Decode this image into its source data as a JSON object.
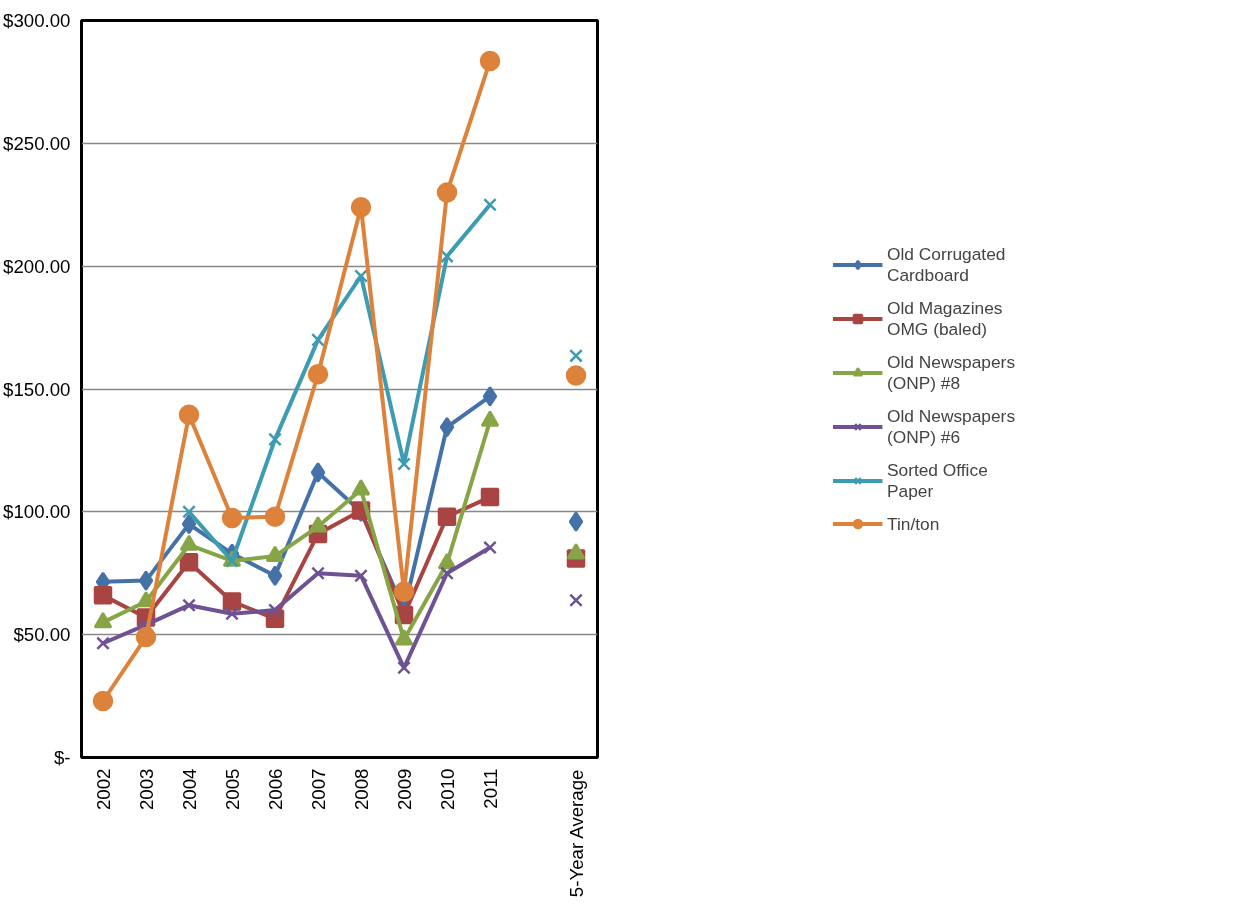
{
  "chart_data": {
    "type": "line",
    "categories": [
      "2002",
      "2003",
      "2004",
      "2005",
      "2006",
      "2007",
      "2008",
      "2009",
      "2010",
      "2011",
      null,
      "5-Year Average"
    ],
    "series": [
      {
        "name": "Old Corrugated Cardboard",
        "color": "#4472a8",
        "marker": "diamond",
        "values": [
          71.5,
          72,
          95,
          83,
          74,
          116,
          100,
          60,
          134.5,
          147,
          null,
          96
        ]
      },
      {
        "name": "Old Magazines OMG (baled)",
        "color": "#a84442",
        "marker": "square",
        "values": [
          66,
          57,
          79.5,
          63.5,
          56.5,
          91,
          100.5,
          58,
          98,
          106,
          null,
          81
        ]
      },
      {
        "name": "Old Newspapers (ONP) #8",
        "color": "#87a446",
        "marker": "triangle",
        "values": [
          55,
          63.5,
          86.5,
          80,
          82,
          94,
          109,
          48,
          79,
          137,
          null,
          83
        ]
      },
      {
        "name": "Old Newspapers (ONP) #6",
        "color": "#6e5294",
        "marker": "cross",
        "values": [
          46.5,
          54,
          62,
          58.5,
          60,
          75,
          74,
          36.5,
          75,
          85.5,
          null,
          64
        ]
      },
      {
        "name": "Sorted Office Paper",
        "color": "#3d9bb2",
        "marker": "cross",
        "values": [
          null,
          null,
          100,
          80,
          129.5,
          170,
          196,
          119.5,
          204,
          225,
          null,
          163.5
        ]
      },
      {
        "name": "Tin/ton",
        "color": "#dd823b",
        "marker": "circle",
        "values": [
          23,
          49,
          139.5,
          97.5,
          98,
          156,
          224,
          67.5,
          230,
          283.5,
          null,
          155.5
        ]
      }
    ],
    "ylim": [
      0,
      300
    ],
    "yticks": [
      {
        "value": 0,
        "label": "$-"
      },
      {
        "value": 50,
        "label": "$50.00"
      },
      {
        "value": 100,
        "label": "$100.00"
      },
      {
        "value": 150,
        "label": "$150.00"
      },
      {
        "value": 200,
        "label": "$200.00"
      },
      {
        "value": 250,
        "label": "$250.00"
      },
      {
        "value": 300,
        "label": "$300.00"
      }
    ],
    "grid": "y",
    "legend": "right",
    "line_style": "solid"
  }
}
